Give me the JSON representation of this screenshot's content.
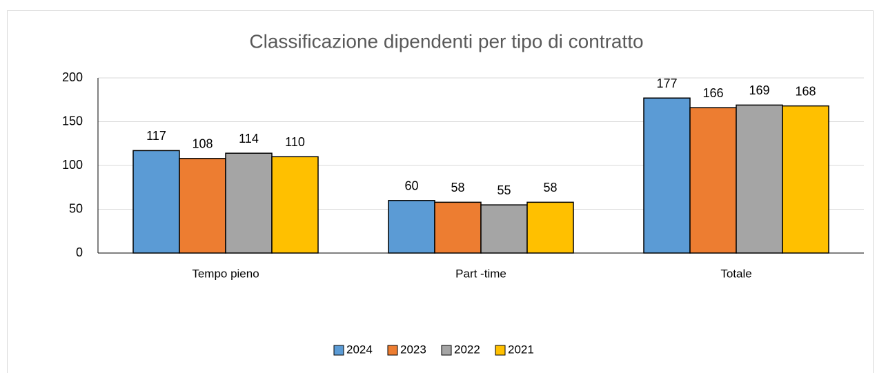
{
  "chart_data": {
    "type": "bar",
    "title": "Classificazione dipendenti per tipo di contratto",
    "categories": [
      "Tempo pieno",
      "Part -time",
      "Totale"
    ],
    "series": [
      {
        "name": "2024",
        "color": "#5b9bd5",
        "values": [
          117,
          60,
          177
        ]
      },
      {
        "name": "2023",
        "color": "#ed7d31",
        "values": [
          108,
          58,
          166
        ]
      },
      {
        "name": "2022",
        "color": "#a5a5a5",
        "values": [
          114,
          55,
          169
        ]
      },
      {
        "name": "2021",
        "color": "#ffc000",
        "values": [
          110,
          58,
          168
        ]
      }
    ],
    "ylim": [
      0,
      200
    ],
    "yticks": [
      0,
      50,
      100,
      150,
      200
    ],
    "grid": true,
    "legend": "bottom"
  }
}
